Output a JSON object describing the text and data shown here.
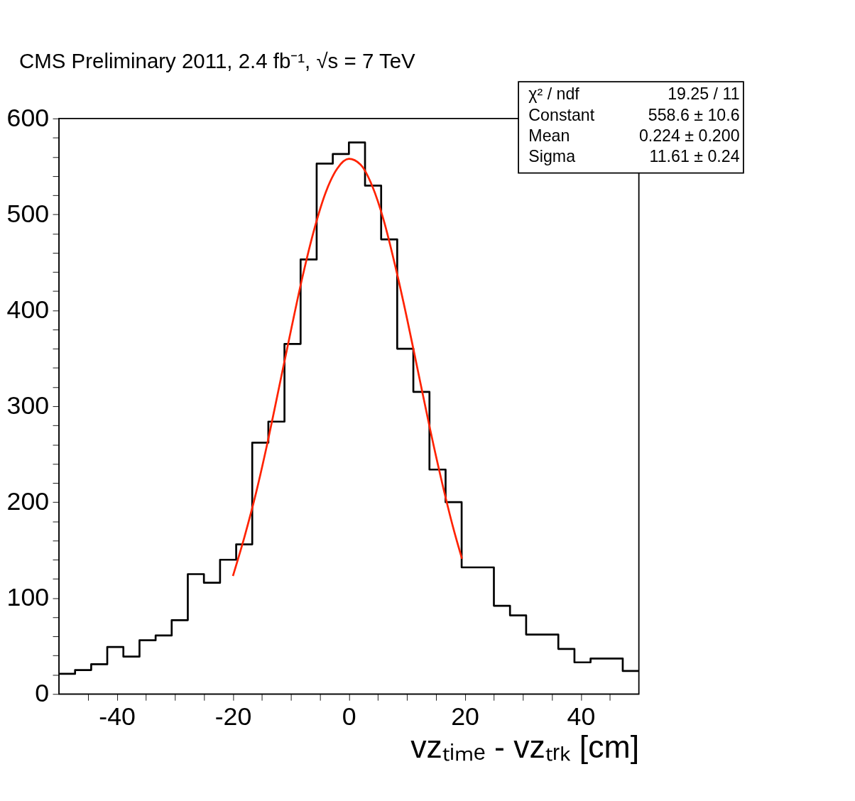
{
  "chart_data": {
    "type": "histogram",
    "title": "CMS Preliminary 2011, 2.4 fb⁻¹, √s = 7 TeV",
    "xlabel": "vzₜᵢₘₑ - vzₜᵣₖ [cm]",
    "bins": [
      -50,
      -47.22,
      -44.44,
      -41.67,
      -38.89,
      -36.11,
      -33.33,
      -30.56,
      -27.78,
      -25,
      -22.22,
      -19.44,
      -16.67,
      -13.89,
      -11.11,
      -8.33,
      -5.56,
      -2.78,
      0,
      2.78,
      5.56,
      8.33,
      11.11,
      13.89,
      16.67,
      19.44,
      22.22,
      25,
      27.78,
      30.56,
      33.33,
      36.11,
      38.89,
      41.67,
      44.44,
      47.22,
      50
    ],
    "values": [
      21,
      25,
      31,
      49,
      39,
      56,
      61,
      77,
      125,
      116,
      140,
      156,
      262,
      284,
      365,
      453,
      553,
      563,
      575,
      530,
      474,
      360,
      315,
      234,
      200,
      132,
      132,
      92,
      82,
      62,
      62,
      47,
      33,
      37,
      37,
      24
    ],
    "color": "#000000",
    "series": [
      {
        "type": "line",
        "color": "#ff2200",
        "x": [
          -20,
          -18,
          -16,
          -14,
          -12,
          -10,
          -8,
          -6,
          -4,
          -2,
          0,
          2,
          4,
          6,
          8,
          10,
          12,
          14,
          16,
          18,
          19.5
        ],
        "values": [
          123,
          164,
          210,
          263,
          321,
          379,
          435,
          484,
          523,
          548,
          558,
          552,
          530,
          494,
          446,
          392,
          334,
          276,
          222,
          173,
          141
        ]
      }
    ],
    "xlim": [
      -50,
      50
    ],
    "xticks": [
      -40,
      -20,
      0,
      20,
      40,
      {
        "value": -45,
        "label": null
      },
      {
        "value": -35,
        "label": null
      },
      {
        "value": -30,
        "label": null
      },
      {
        "value": -25,
        "label": null
      },
      {
        "value": -15,
        "label": null
      },
      {
        "value": -10,
        "label": null
      },
      {
        "value": -5,
        "label": null
      },
      {
        "value": 5,
        "label": null
      },
      {
        "value": 10,
        "label": null
      },
      {
        "value": 15,
        "label": null
      },
      {
        "value": 25,
        "label": null
      },
      {
        "value": 30,
        "label": null
      },
      {
        "value": 35,
        "label": null
      },
      {
        "value": 45,
        "label": null
      }
    ],
    "ylim": [
      0,
      600
    ],
    "yticks": [
      0,
      100,
      200,
      300,
      400,
      500,
      600,
      {
        "value": 20,
        "label": null
      },
      {
        "value": 40,
        "label": null
      },
      {
        "value": 60,
        "label": null
      },
      {
        "value": 80,
        "label": null
      },
      {
        "value": 120,
        "label": null
      },
      {
        "value": 140,
        "label": null
      },
      {
        "value": 160,
        "label": null
      },
      {
        "value": 180,
        "label": null
      },
      {
        "value": 220,
        "label": null
      },
      {
        "value": 240,
        "label": null
      },
      {
        "value": 260,
        "label": null
      },
      {
        "value": 280,
        "label": null
      },
      {
        "value": 320,
        "label": null
      },
      {
        "value": 340,
        "label": null
      },
      {
        "value": 360,
        "label": null
      },
      {
        "value": 380,
        "label": null
      },
      {
        "value": 420,
        "label": null
      },
      {
        "value": 440,
        "label": null
      },
      {
        "value": 460,
        "label": null
      },
      {
        "value": 480,
        "label": null
      },
      {
        "value": 520,
        "label": null
      },
      {
        "value": 540,
        "label": null
      },
      {
        "value": 560,
        "label": null
      },
      {
        "value": 580,
        "label": null
      }
    ],
    "annotations": [
      "χ² / ndf",
      "19.25 / 11",
      "Constant",
      "558.6 ± 10.6",
      "Mean",
      "0.224 ± 0.200",
      "Sigma",
      "11.61 ± 0.24"
    ],
    "grid": false
  }
}
